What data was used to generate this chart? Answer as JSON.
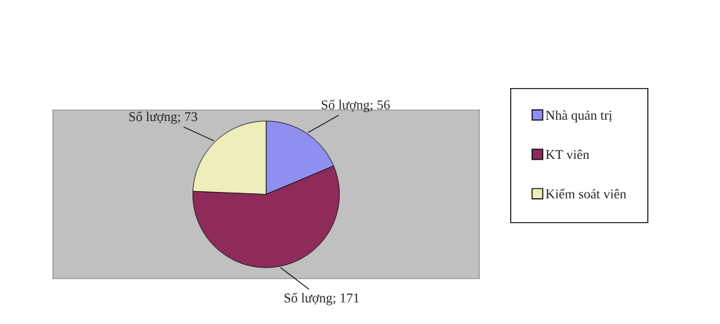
{
  "chart_data": {
    "type": "pie",
    "categories": [
      "Nhà quản trị",
      "KT viên",
      "Kiểm soát viên"
    ],
    "values": [
      56,
      171,
      73
    ],
    "colors": [
      "#8f8fef",
      "#8e2b5a",
      "#eeeebb"
    ],
    "value_labels": [
      "Số lượng; 56",
      "Số lượng; 171",
      "Số lượng; 73"
    ],
    "legend": "right"
  }
}
